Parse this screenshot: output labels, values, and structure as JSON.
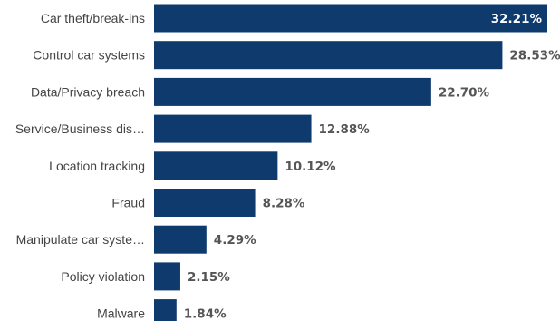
{
  "chart_data": {
    "type": "bar",
    "orientation": "horizontal",
    "title": "",
    "xlabel": "",
    "ylabel": "",
    "categories": [
      "Car theft/break-ins",
      "Control car systems",
      "Data/Privacy breach",
      "Service/Business dis…",
      "Location tracking",
      "Fraud",
      "Manipulate car syste…",
      "Policy violation",
      "Malware"
    ],
    "values": [
      32.21,
      28.53,
      22.7,
      12.88,
      10.12,
      8.28,
      4.29,
      2.15,
      1.84
    ],
    "value_labels": [
      "32.21%",
      "28.53%",
      "22.70%",
      "12.88%",
      "10.12%",
      "8.28%",
      "4.29%",
      "2.15%",
      "1.84%"
    ],
    "unit": "%",
    "xlim": [
      0,
      32.21
    ],
    "grid": false,
    "legend": "none",
    "colors": {
      "bar": "#0e3a6e",
      "label": "#444444",
      "value": "#555555",
      "value_inside": "#ffffff"
    }
  }
}
